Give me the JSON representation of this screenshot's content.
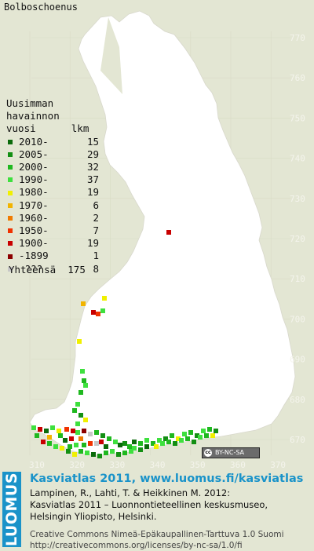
{
  "title": "Bolboschoenus",
  "map": {
    "y_labels": [
      "770",
      "760",
      "750",
      "740",
      "730",
      "720",
      "710",
      "700",
      "690",
      "680",
      "670"
    ],
    "x_labels": [
      "310",
      "320",
      "330",
      "340",
      "350",
      "360",
      "370"
    ],
    "colors": {
      "land": "#ffffff",
      "background": "#e3e6d3",
      "grid": "#d8dbc6"
    }
  },
  "legend": {
    "heading": [
      "Uusimman",
      "havainnon",
      "vuosi      lkm"
    ],
    "items": [
      {
        "label": "2010-",
        "count": "15",
        "color": "#0b6b0b"
      },
      {
        "label": "2005-",
        "count": "29",
        "color": "#138f13"
      },
      {
        "label": "2000-",
        "count": "32",
        "color": "#1fb81f"
      },
      {
        "label": "1990-",
        "count": "37",
        "color": "#3ee03e"
      },
      {
        "label": "1980-",
        "count": "19",
        "color": "#f0f000"
      },
      {
        "label": "1970-",
        "count": "6",
        "color": "#f2b400"
      },
      {
        "label": "1960-",
        "count": "2",
        "color": "#f07b00"
      },
      {
        "label": "1950-",
        "count": "7",
        "color": "#f03200"
      },
      {
        "label": "1900-",
        "count": "19",
        "color": "#c80000"
      },
      {
        "label": "-1899",
        "count": "1",
        "color": "#8c0000"
      },
      {
        "label": " ???",
        "count": "8",
        "color": "#c7c7c7"
      }
    ],
    "total_label": "Yhteensä",
    "total_count": "175"
  },
  "cc_badge": {
    "symbol": "cc",
    "text": "BY-NC-SA"
  },
  "logo_text": "LUOMUS",
  "credits": {
    "title": "Kasviatlas 2011, www.luomus.fi/kasviatlas",
    "citation": [
      "Lampinen, R., Lahti, T. & Heikkinen M. 2012:",
      "Kasviatlas 2011 – Luonnontieteellinen keskusmuseo,",
      "Helsingin Yliopisto, Helsinki."
    ],
    "license": [
      "Creative Commons Nimeä-Epäkaupallinen-Tarttuva 1.0 Suomi",
      "http://creativecommons.org/licenses/by-nc-sa/1.0/fi"
    ]
  }
}
